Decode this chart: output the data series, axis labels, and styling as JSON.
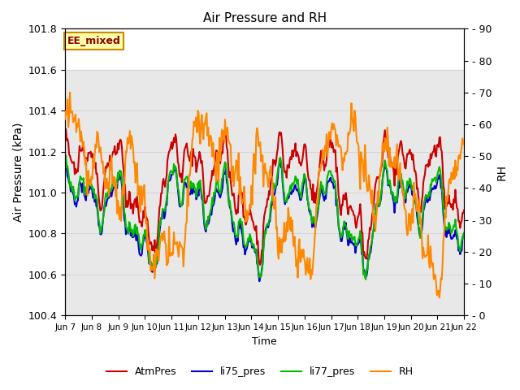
{
  "title": "Air Pressure and RH",
  "xlabel": "Time",
  "ylabel_left": "Air Pressure (kPa)",
  "ylabel_right": "RH",
  "ylim_left": [
    100.4,
    101.8
  ],
  "ylim_right": [
    0,
    90
  ],
  "label_box": "EE_mixed",
  "legend": [
    "AtmPres",
    "li75_pres",
    "li77_pres",
    "RH"
  ],
  "colors": [
    "#cc0000",
    "#0000cc",
    "#00bb00",
    "#ff8800"
  ],
  "linewidth": 1.5,
  "background_color": "#ffffff",
  "band_color": "#e8e8e8",
  "xtick_labels": [
    "Jun 7",
    "Jun 8",
    "Jun 9",
    "Jun 10",
    "Jun 11",
    "Jun 12",
    "Jun 13",
    "Jun 14",
    "Jun 15",
    "Jun 16",
    "Jun 17",
    "Jun 18",
    "Jun 19",
    "Jun 20",
    "Jun 21",
    "Jun 22"
  ],
  "yticks_left": [
    100.4,
    100.6,
    100.8,
    101.0,
    101.2,
    101.4,
    101.6,
    101.8
  ],
  "yticks_right": [
    0,
    10,
    20,
    30,
    40,
    50,
    60,
    70,
    80,
    90
  ],
  "n_points": 500,
  "figsize": [
    6.4,
    4.8
  ],
  "dpi": 100
}
